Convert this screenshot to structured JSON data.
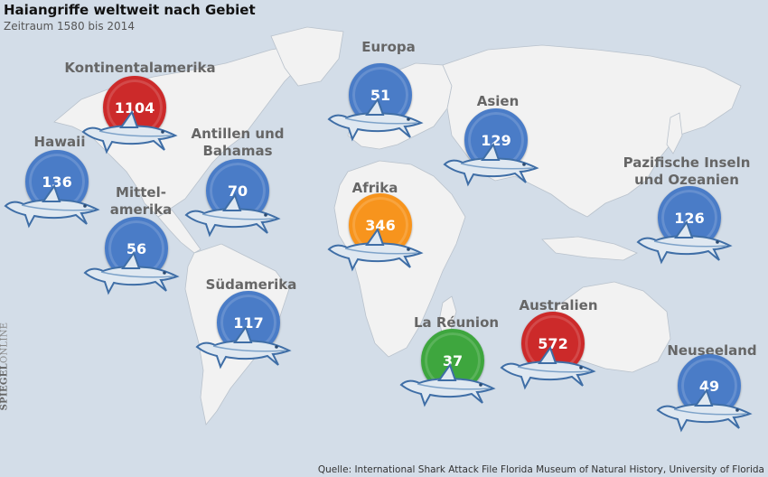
{
  "title": "Haiangriffe weltweit nach Gebiet",
  "subtitle": "Zeitraum 1580 bis 2014",
  "source": "Quelle: International Shark Attack File Florida Museum of Natural History, University of Florida",
  "brand": {
    "part1": "SPIEGEL",
    "part2": "ONLINE"
  },
  "colors": {
    "blue": "#4a7cc7",
    "red": "#cc2a2a",
    "orange": "#f7941d",
    "green": "#3ea63e",
    "ocean": "#d3dde8",
    "land": "#f2f2f2"
  },
  "regions": [
    {
      "name": "Kontinentalamerika",
      "value": "1104",
      "color": "red"
    },
    {
      "name": "Europa",
      "value": "51",
      "color": "blue"
    },
    {
      "name": "Asien",
      "value": "129",
      "color": "blue"
    },
    {
      "name": "Hawaii",
      "value": "136",
      "color": "blue"
    },
    {
      "name": "Antillen und Bahamas",
      "value": "70",
      "color": "blue"
    },
    {
      "name": "Mittel- amerika",
      "value": "56",
      "color": "blue"
    },
    {
      "name": "Afrika",
      "value": "346",
      "color": "orange"
    },
    {
      "name": "Pazifische Inseln und Ozeanien",
      "value": "126",
      "color": "blue"
    },
    {
      "name": "Südamerika",
      "value": "117",
      "color": "blue"
    },
    {
      "name": "La Réunion",
      "value": "37",
      "color": "green"
    },
    {
      "name": "Australien",
      "value": "572",
      "color": "red"
    },
    {
      "name": "Neuseeland",
      "value": "49",
      "color": "blue"
    }
  ]
}
